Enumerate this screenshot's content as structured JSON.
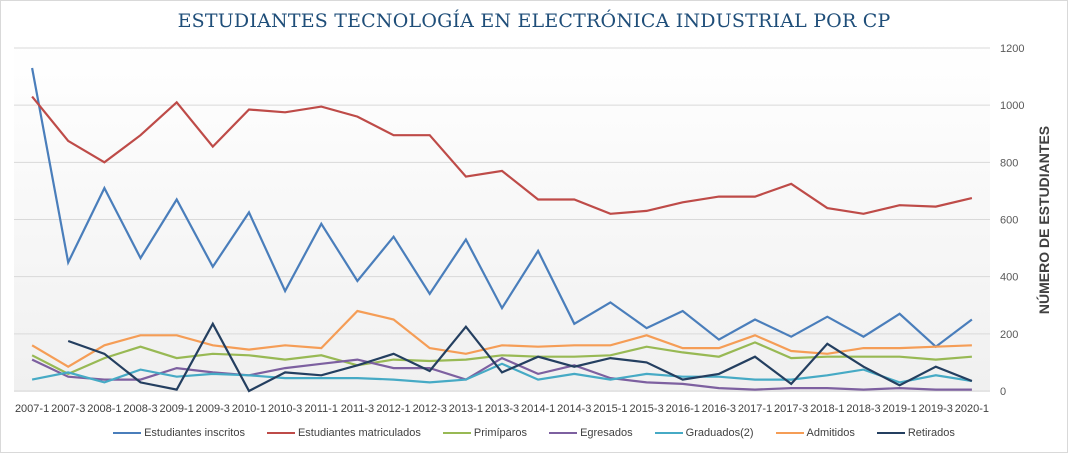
{
  "chart_data": {
    "type": "line",
    "title": "ESTUDIANTES TECNOLOGÍA EN ELECTRÓNICA INDUSTRIAL POR CP",
    "xlabel": "",
    "ylabel": "NÚMERO DE ESTUDIANTES",
    "ylim": [
      0,
      1200
    ],
    "yticks": [
      0,
      200,
      400,
      600,
      800,
      1000,
      1200
    ],
    "y_axis_side": "right",
    "grid": true,
    "legend_position": "bottom",
    "categories": [
      "2007-1",
      "2007-3",
      "2008-1",
      "2008-3",
      "2009-1",
      "2009-3",
      "2010-1",
      "2010-3",
      "2011-1",
      "2011-3",
      "2012-1",
      "2012-3",
      "2013-1",
      "2013-3",
      "2014-1",
      "2014-3",
      "2015-1",
      "2015-3",
      "2016-1",
      "2016-3",
      "2017-1",
      "2017-3",
      "2018-1",
      "2018-3",
      "2019-1",
      "2019-3",
      "2020-1"
    ],
    "series": [
      {
        "name": "Estudiantes inscritos",
        "color": "#4a7ebb",
        "values": [
          1130,
          450,
          710,
          465,
          670,
          435,
          625,
          350,
          585,
          385,
          540,
          340,
          530,
          290,
          490,
          235,
          310,
          220,
          280,
          180,
          250,
          190,
          260,
          190,
          270,
          155,
          250
        ]
      },
      {
        "name": "Estudiantes matriculados",
        "color": "#be4b48",
        "values": [
          1030,
          875,
          800,
          895,
          1010,
          855,
          985,
          975,
          995,
          960,
          895,
          895,
          750,
          770,
          670,
          670,
          620,
          630,
          660,
          680,
          680,
          725,
          640,
          620,
          650,
          645,
          675
        ]
      },
      {
        "name": "Primíparos",
        "color": "#98b954",
        "values": [
          125,
          60,
          115,
          155,
          115,
          130,
          125,
          110,
          125,
          90,
          110,
          105,
          110,
          125,
          120,
          120,
          125,
          155,
          135,
          120,
          170,
          115,
          120,
          120,
          120,
          110,
          120
        ]
      },
      {
        "name": "Egresados",
        "color": "#7d60a0",
        "values": [
          110,
          50,
          40,
          40,
          80,
          65,
          55,
          80,
          95,
          110,
          80,
          80,
          40,
          115,
          60,
          90,
          45,
          30,
          25,
          10,
          5,
          10,
          10,
          5,
          10,
          5,
          5
        ]
      },
      {
        "name": "Graduados(2)",
        "color": "#46aac5",
        "values": [
          40,
          65,
          30,
          75,
          50,
          60,
          55,
          45,
          45,
          45,
          40,
          30,
          40,
          95,
          40,
          60,
          40,
          60,
          50,
          50,
          40,
          40,
          55,
          75,
          30,
          55,
          35
        ]
      },
      {
        "name": "Admitidos",
        "color": "#f59d56",
        "values": [
          160,
          85,
          160,
          195,
          195,
          160,
          145,
          160,
          150,
          280,
          250,
          150,
          130,
          160,
          155,
          160,
          160,
          195,
          150,
          150,
          195,
          140,
          130,
          150,
          150,
          155,
          160
        ]
      },
      {
        "name": "Retirados",
        "color": "#243f60",
        "values": [
          null,
          175,
          130,
          30,
          5,
          235,
          0,
          65,
          55,
          90,
          130,
          70,
          225,
          65,
          120,
          85,
          115,
          100,
          40,
          60,
          120,
          25,
          165,
          85,
          20,
          85,
          35
        ]
      }
    ]
  }
}
